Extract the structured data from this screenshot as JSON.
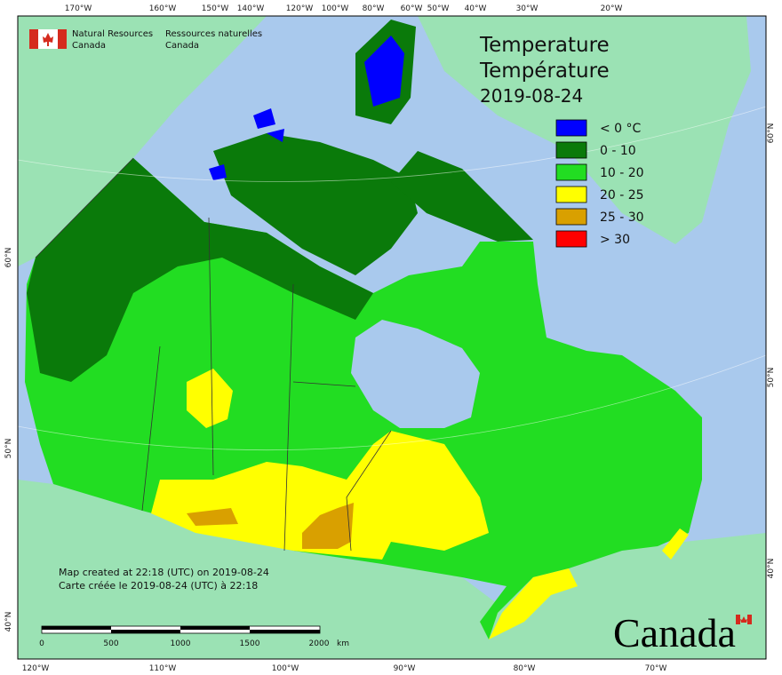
{
  "header": {
    "agency_en": [
      "Natural Resources",
      "Canada"
    ],
    "agency_fr": [
      "Ressources naturelles",
      "Canada"
    ]
  },
  "title": {
    "en": "Temperature",
    "fr": "Température",
    "date": "2019-08-24"
  },
  "legend": [
    {
      "label": "< 0 °C",
      "color": "#0000ff"
    },
    {
      "label": "0 - 10",
      "color": "#0a7a0a"
    },
    {
      "label": "10 - 20",
      "color": "#22dd22"
    },
    {
      "label": "20 - 25",
      "color": "#ffff00"
    },
    {
      "label": "25 - 30",
      "color": "#d9a000"
    },
    {
      "label": "> 30",
      "color": "#ff0000"
    }
  ],
  "graticule": {
    "top": [
      "170°W",
      "160°W",
      "150°W",
      "140°W",
      "120°W",
      "100°W",
      "80°W",
      "60°W",
      "50°W",
      "40°W",
      "30°W",
      "20°W"
    ],
    "bottom": [
      "120°W",
      "110°W",
      "100°W",
      "90°W",
      "80°W",
      "70°W"
    ],
    "left": [
      "60°N",
      "50°N",
      "40°N"
    ],
    "right": [
      "60°N",
      "50°N",
      "40°N"
    ]
  },
  "footer": {
    "created_en": "Map created at 22:18 (UTC) on 2019-08-24",
    "created_fr": "Carte créée le 2019-08-24 (UTC) à 22:18"
  },
  "scale_bar": {
    "labels": [
      "0",
      "500",
      "1000",
      "1500",
      "2000"
    ],
    "unit": "km"
  },
  "wordmark": "Canada"
}
